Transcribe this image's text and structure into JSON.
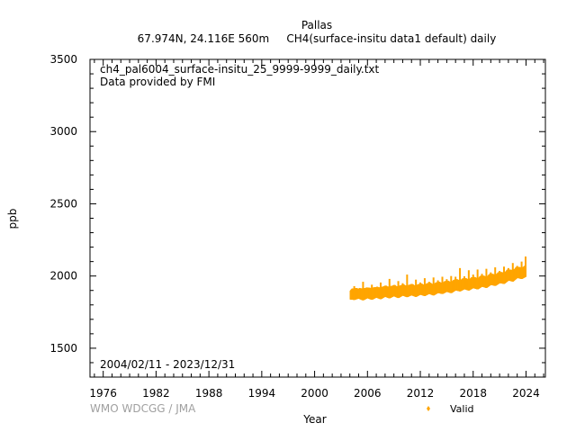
{
  "chart_data": {
    "type": "scatter",
    "title": "Pallas",
    "subtitle": "67.974N, 24.116E 560m     CH4(surface-insitu data1 default) daily",
    "ylabel": "ppb",
    "xlabel": "Year",
    "xlim": [
      1974.5,
      2026.2
    ],
    "ylim": [
      1300,
      3500
    ],
    "x_ticks": [
      1976,
      1982,
      1988,
      1994,
      2000,
      2006,
      2012,
      2018,
      2024
    ],
    "y_ticks": [
      1500,
      2000,
      2500,
      3000,
      3500
    ],
    "grid": false,
    "legend_position": "bottom-right",
    "annotations": {
      "filename": "ch4_pal6004_surface-insitu_25_9999-9999_daily.txt",
      "provider": "Data provided by FMI",
      "period": "2004/02/11 - 2023/12/31",
      "credit": "WMO WDCGG / JMA"
    },
    "series": [
      {
        "name": "Valid",
        "color": "#ffa500",
        "x": [
          2004.1,
          2004.5,
          2005.0,
          2005.5,
          2006.0,
          2006.5,
          2007.0,
          2007.5,
          2008.0,
          2008.5,
          2009.0,
          2009.5,
          2010.0,
          2010.5,
          2011.0,
          2011.5,
          2012.0,
          2012.5,
          2013.0,
          2013.5,
          2014.0,
          2014.5,
          2015.0,
          2015.5,
          2016.0,
          2016.5,
          2017.0,
          2017.5,
          2018.0,
          2018.5,
          2019.0,
          2019.5,
          2020.0,
          2020.5,
          2021.0,
          2021.5,
          2022.0,
          2022.5,
          2023.0,
          2023.5,
          2023.95
        ],
        "y_low": [
          1838,
          1835,
          1845,
          1832,
          1848,
          1836,
          1852,
          1840,
          1858,
          1846,
          1862,
          1848,
          1866,
          1854,
          1868,
          1856,
          1872,
          1862,
          1878,
          1866,
          1884,
          1876,
          1892,
          1882,
          1902,
          1894,
          1910,
          1900,
          1918,
          1908,
          1928,
          1918,
          1940,
          1932,
          1952,
          1946,
          1970,
          1962,
          1988,
          1980,
          1995
        ],
        "y_high": [
          1898,
          1930,
          1905,
          1960,
          1915,
          1940,
          1920,
          1955,
          1930,
          1980,
          1935,
          1965,
          1950,
          2010,
          1945,
          1975,
          1955,
          1985,
          1960,
          1990,
          1970,
          1995,
          1978,
          2000,
          1995,
          2055,
          1998,
          2040,
          2010,
          2045,
          2015,
          2050,
          2025,
          2060,
          2035,
          2065,
          2055,
          2090,
          2070,
          2100,
          2135
        ]
      }
    ]
  }
}
